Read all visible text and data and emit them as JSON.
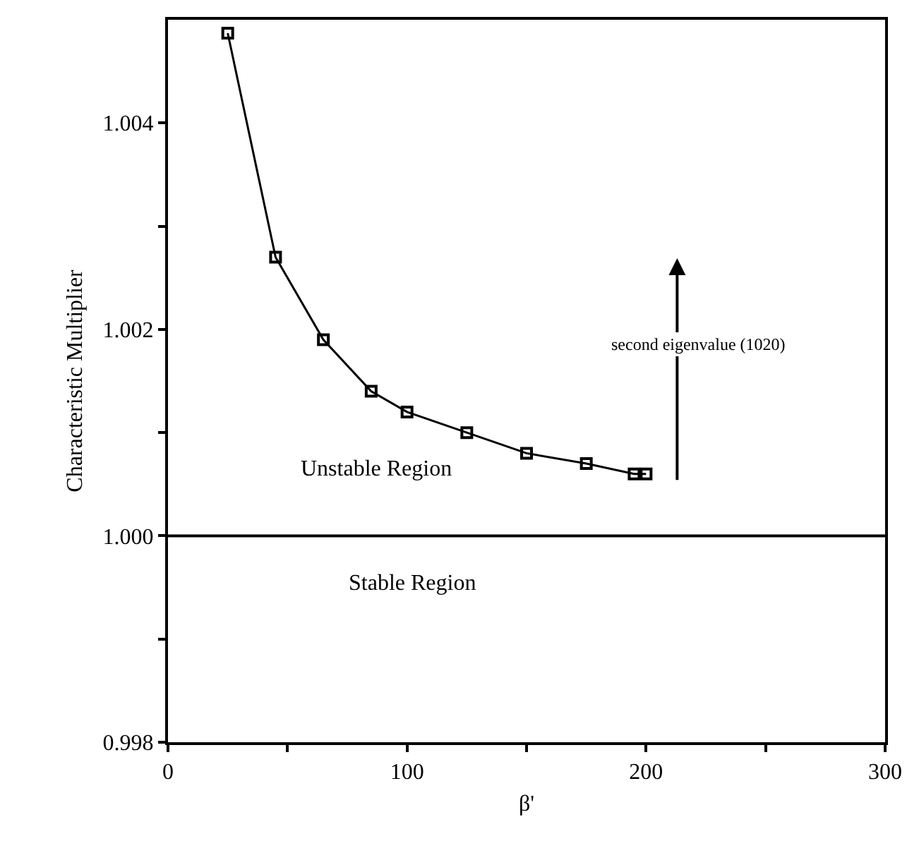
{
  "chart_data": {
    "type": "line",
    "xlabel": "β'",
    "ylabel": "Characteristic Multiplier",
    "x": [
      25,
      45,
      65,
      85,
      100,
      125,
      150,
      175,
      195,
      200
    ],
    "series": [
      {
        "color": "#000000",
        "values": [
          1.00487,
          1.0027,
          1.0019,
          1.0014,
          1.0012,
          1.001,
          1.0008,
          1.0007,
          1.0006,
          1.0006
        ]
      }
    ],
    "xlim": [
      0,
      300
    ],
    "ylim": [
      0.998,
      1.005
    ],
    "xticks": [
      0,
      {
        "value": 50,
        "label": null
      },
      100,
      {
        "value": 150,
        "label": null
      },
      200,
      {
        "value": 250,
        "label": null
      },
      300
    ],
    "yticks": [
      {
        "value": 0.998,
        "label": "0.998"
      },
      {
        "value": 0.999,
        "label": null
      },
      {
        "value": 1.0,
        "label": "1.000"
      },
      {
        "value": 1.001,
        "label": null
      },
      {
        "value": 1.002,
        "label": "1.002"
      },
      {
        "value": 1.003,
        "label": null
      },
      {
        "value": 1.004,
        "label": "1.004"
      }
    ],
    "ref_lines": [
      {
        "axis": "y",
        "value": 1.0,
        "color": "#000000"
      }
    ],
    "annotations": [
      "Unstable Region",
      "Stable Region",
      "second eigenvalue (1020)"
    ],
    "marker": "square",
    "line_style": "solid"
  }
}
